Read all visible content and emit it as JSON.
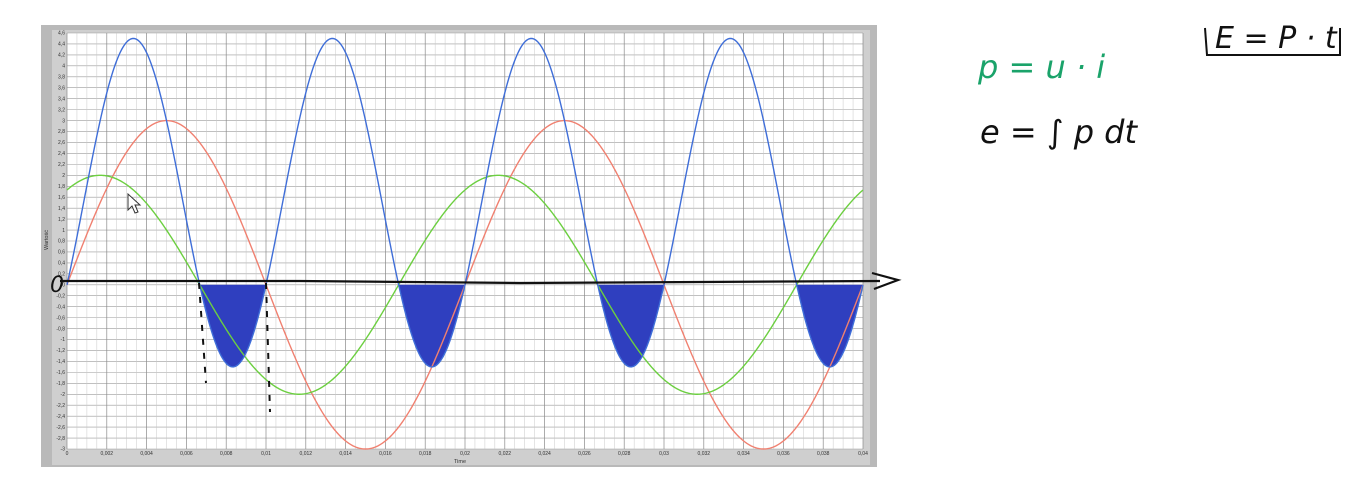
{
  "chart_data": {
    "type": "line",
    "xlabel": "Time",
    "ylabel": "Wartość",
    "xlim": [
      0,
      0.04
    ],
    "ylim": [
      -3,
      4.6
    ],
    "grid": true,
    "x_ticks": [
      "0",
      "0,002",
      "0,004",
      "0,006",
      "0,008",
      "0,01",
      "0,012",
      "0,014",
      "0,016",
      "0,018",
      "0,02",
      "0,022",
      "0,024",
      "0,026",
      "0,028",
      "0,03",
      "0,032",
      "0,034",
      "0,036",
      "0,038",
      "0,04"
    ],
    "y_ticks": [
      "4,6",
      "4,4",
      "4,2",
      "4",
      "3,8",
      "3,6",
      "3,4",
      "3,2",
      "3",
      "2,8",
      "2,6",
      "2,4",
      "2,2",
      "2",
      "1,8",
      "1,6",
      "1,4",
      "1,2",
      "1",
      "0,8",
      "0,6",
      "0,4",
      "0,2",
      "0",
      "-0,2",
      "-0,4",
      "-0,6",
      "-0,8",
      "-1",
      "-1,2",
      "-1,4",
      "-1,6",
      "-1,8",
      "-2",
      "-2,2",
      "-2,4",
      "-2,6",
      "-2,8",
      "-3"
    ],
    "series": [
      {
        "label_ref": "u",
        "color": "#f08070",
        "amplitude": 3,
        "frequency_hz": 50,
        "phase_deg": 0,
        "x": [
          0,
          0.005,
          0.01,
          0.015,
          0.02,
          0.025,
          0.03,
          0.035,
          0.04
        ],
        "y": [
          0,
          3,
          0,
          -3,
          0,
          3,
          0,
          -3,
          0
        ]
      },
      {
        "label_ref": "i",
        "color": "#6ccf40",
        "amplitude": 2,
        "frequency_hz": 50,
        "phase_deg": 60,
        "x": [
          0,
          0.0017,
          0.0067,
          0.0117,
          0.0167,
          0.0217,
          0.0267,
          0.0317,
          0.0367,
          0.04
        ],
        "y": [
          1.73,
          2,
          0,
          -2,
          0,
          2,
          0,
          -2,
          0,
          1.73
        ]
      },
      {
        "label_ref": "p",
        "color": "#3f6ed8",
        "formula": "u*i",
        "x": [
          0,
          0.0033,
          0.0067,
          0.0083,
          0.01,
          0.0133,
          0.0167,
          0.0183,
          0.02
        ],
        "y": [
          0,
          4.5,
          0,
          -1.5,
          0,
          4.5,
          0,
          -1.5,
          0
        ]
      }
    ],
    "shaded_regions": [
      {
        "from": 0.00667,
        "to": 0.01,
        "color": "#2f3fbf"
      },
      {
        "from": 0.01667,
        "to": 0.02,
        "color": "#2f3fbf"
      },
      {
        "from": 0.02667,
        "to": 0.03,
        "color": "#2f3fbf"
      },
      {
        "from": 0.03667,
        "to": 0.04,
        "color": "#2f3fbf"
      }
    ]
  },
  "annotations": {
    "origin_label": "0",
    "power_formula": "p = u · i",
    "energy_integral": "e = ∫ p dt",
    "energy_boxed": "E = P · t",
    "colors": {
      "green_ink": "#1aa36a",
      "black_ink": "#111111"
    }
  }
}
